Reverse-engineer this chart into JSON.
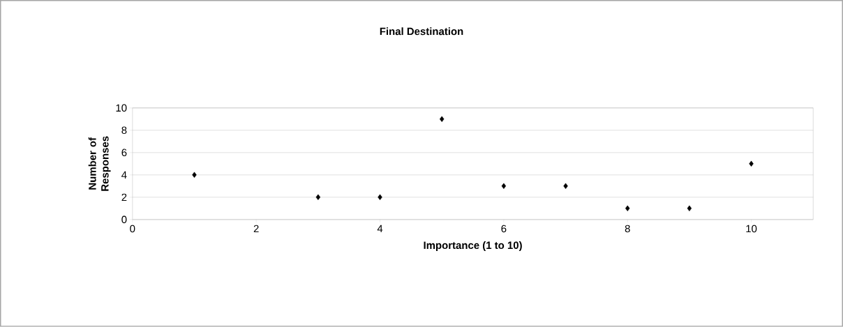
{
  "chart_data": {
    "type": "scatter",
    "title": "Final Destination",
    "xlabel": "Importance (1 to 10)",
    "ylabel": "Number of Responses",
    "x": [
      1,
      3,
      4,
      5,
      6,
      7,
      8,
      9,
      10
    ],
    "values": [
      4,
      2,
      2,
      9,
      3,
      3,
      1,
      1,
      5
    ],
    "color": "#000000",
    "marker": "diamond",
    "xlim": [
      0,
      11
    ],
    "xticks": [
      0,
      2,
      4,
      6,
      8,
      10
    ],
    "ylim": [
      0,
      10
    ],
    "yticks": [
      0,
      2,
      4,
      6,
      8,
      10
    ],
    "grid": "y"
  }
}
